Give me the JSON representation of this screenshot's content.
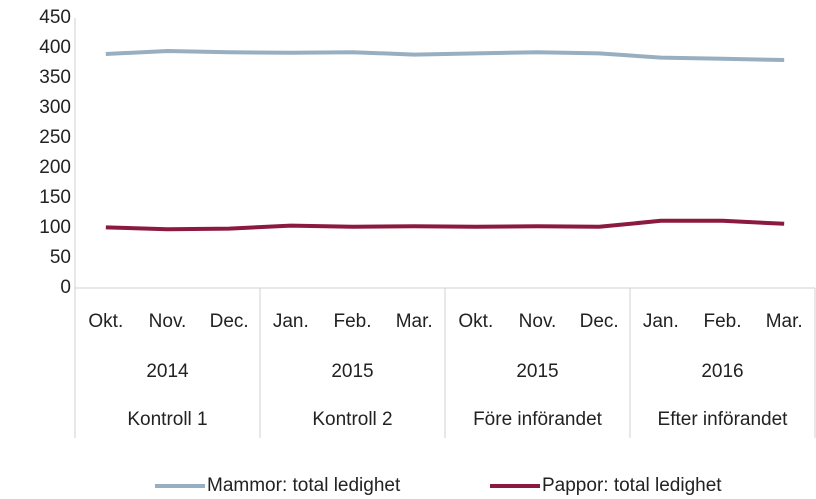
{
  "chart_data": {
    "type": "line",
    "categories": [
      "Okt.",
      "Nov.",
      "Dec.",
      "Jan.",
      "Feb.",
      "Mar.",
      "Okt.",
      "Nov.",
      "Dec.",
      "Jan.",
      "Feb.",
      "Mar."
    ],
    "category_groups": [
      {
        "year": "2014",
        "label": "Kontroll 1"
      },
      {
        "year": "2015",
        "label": "Kontroll 2"
      },
      {
        "year": "2015",
        "label": "Före införandet"
      },
      {
        "year": "2016",
        "label": "Efter införandet"
      }
    ],
    "series": [
      {
        "name": "Mammor: total ledighet",
        "color": "#97afc1",
        "values": [
          390,
          395,
          393,
          392,
          393,
          389,
          391,
          393,
          391,
          384,
          382,
          380
        ]
      },
      {
        "name": "Pappor: total ledighet",
        "color": "#8b1a3e",
        "values": [
          101,
          98,
          99,
          104,
          102,
          103,
          102,
          103,
          102,
          112,
          112,
          107
        ]
      }
    ],
    "ylim": [
      0,
      450
    ],
    "yticks": [
      0,
      50,
      100,
      150,
      200,
      250,
      300,
      350,
      400,
      450
    ],
    "grid": false,
    "legend": "bottom"
  }
}
